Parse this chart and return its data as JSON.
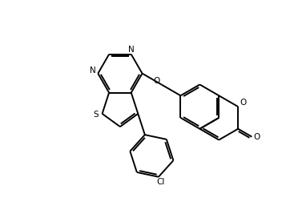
{
  "bg_color": "#ffffff",
  "lw": 1.4,
  "figsize": [
    3.57,
    2.52
  ],
  "dpi": 100,
  "xlim": [
    0,
    10
  ],
  "ylim": [
    0,
    7
  ]
}
